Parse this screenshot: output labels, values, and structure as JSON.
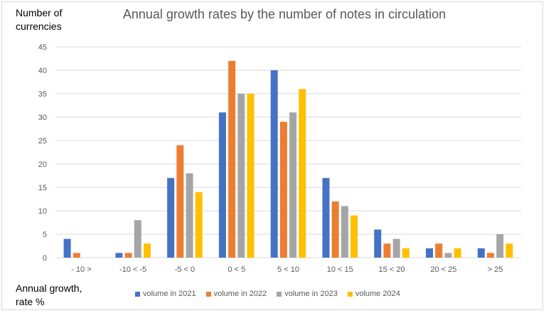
{
  "chart_data": {
    "type": "bar",
    "title": "Annual growth rates by the number of notes in circulation",
    "ylabel": "Number of currencies",
    "xlabel": "Annual growth, rate %",
    "ylim": [
      0,
      45
    ],
    "yticks": [
      0,
      5,
      10,
      15,
      20,
      25,
      30,
      35,
      40,
      45
    ],
    "grid": true,
    "legend": "bottom",
    "categories": [
      "- 10 >",
      "-10 < -5",
      "-5 < 0",
      "0 < 5",
      "5 < 10",
      "10 <  15",
      "15 < 20",
      "20 < 25",
      "> 25"
    ],
    "series": [
      {
        "name": "volume in 2021",
        "color": "#4472c4",
        "values": [
          4,
          1,
          17,
          31,
          40,
          17,
          6,
          2,
          2
        ]
      },
      {
        "name": "volume in 2022",
        "color": "#ed7d31",
        "values": [
          1,
          1,
          24,
          42,
          29,
          12,
          3,
          3,
          1
        ]
      },
      {
        "name": "volume in 2023",
        "color": "#a5a5a5",
        "values": [
          0,
          8,
          18,
          35,
          31,
          11,
          4,
          1,
          5
        ]
      },
      {
        "name": "volume 2024",
        "color": "#ffc000",
        "values": [
          0,
          3,
          14,
          35,
          36,
          9,
          2,
          2,
          3
        ]
      }
    ]
  }
}
